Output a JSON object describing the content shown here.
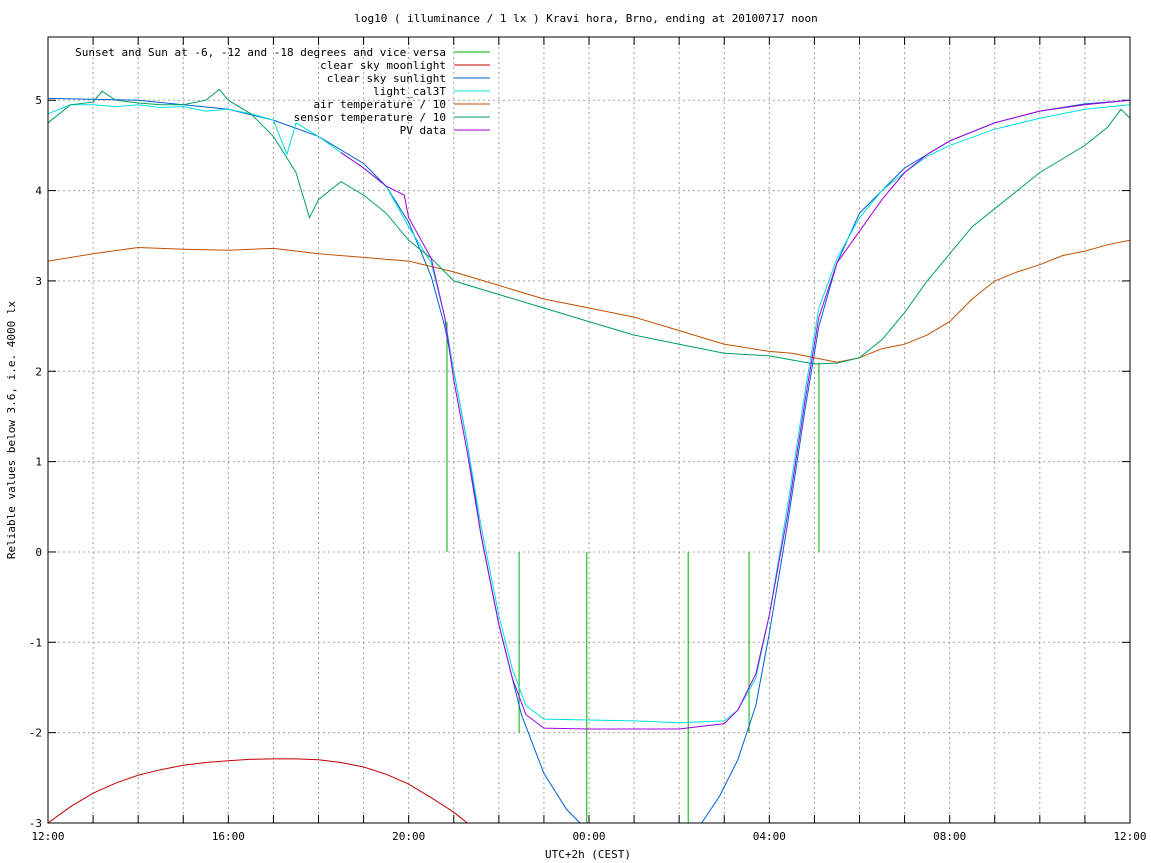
{
  "chart_data": {
    "type": "line",
    "title": "log10 ( illuminance / 1 lx ) Kravi hora, Brno, ending at 20100717 noon",
    "xlabel": "UTC+2h (CEST)",
    "ylabel": "Reliable values below 3.6, i.e. 4000 lx",
    "x_unit": "hours",
    "xlim": [
      12,
      36
    ],
    "ylim": [
      -3,
      5.7
    ],
    "x_tick_labels": [
      {
        "x": 12,
        "label": "12:00"
      },
      {
        "x": 16,
        "label": "16:00"
      },
      {
        "x": 20,
        "label": "20:00"
      },
      {
        "x": 24,
        "label": "00:00"
      },
      {
        "x": 28,
        "label": "04:00"
      },
      {
        "x": 32,
        "label": "08:00"
      },
      {
        "x": 36,
        "label": "12:00"
      }
    ],
    "x_minor_ticks": [
      13,
      14,
      15,
      17,
      18,
      19,
      21,
      22,
      23,
      25,
      26,
      27,
      29,
      30,
      31,
      33,
      34,
      35
    ],
    "y_ticks": [
      -3,
      -2,
      -1,
      0,
      1,
      2,
      3,
      4,
      5
    ],
    "grid": true,
    "legend_position": "top-left",
    "series": [
      {
        "name": "Sunset and Sun at -6, -12 and -18 degrees and vice versa",
        "color": "#00b000",
        "style": "impulses",
        "points": [
          [
            20.85,
            2.55
          ],
          [
            21.55,
            0
          ],
          [
            22.45,
            -2.0
          ],
          [
            23.95,
            -3
          ],
          [
            26.2,
            -3
          ],
          [
            27.55,
            -2.0
          ],
          [
            28.45,
            0
          ],
          [
            29.1,
            2.1
          ]
        ]
      },
      {
        "name": "clear sky moonlight",
        "color": "#c00000",
        "points": [
          [
            12.0,
            -3.0
          ],
          [
            12.5,
            -2.82
          ],
          [
            13.0,
            -2.67
          ],
          [
            13.5,
            -2.56
          ],
          [
            14.0,
            -2.47
          ],
          [
            14.5,
            -2.41
          ],
          [
            15.0,
            -2.36
          ],
          [
            15.5,
            -2.33
          ],
          [
            16.0,
            -2.31
          ],
          [
            16.5,
            -2.295
          ],
          [
            17.0,
            -2.29
          ],
          [
            17.5,
            -2.29
          ],
          [
            18.0,
            -2.3
          ],
          [
            18.5,
            -2.33
          ],
          [
            19.0,
            -2.38
          ],
          [
            19.5,
            -2.46
          ],
          [
            20.0,
            -2.57
          ],
          [
            20.5,
            -2.72
          ],
          [
            21.0,
            -2.88
          ],
          [
            21.3,
            -3.0
          ]
        ]
      },
      {
        "name": "clear sky sunlight",
        "color": "#0060d0",
        "points": [
          [
            12.0,
            5.02
          ],
          [
            14.0,
            5.0
          ],
          [
            16.0,
            4.9
          ],
          [
            17.0,
            4.78
          ],
          [
            18.0,
            4.6
          ],
          [
            19.0,
            4.3
          ],
          [
            19.5,
            4.05
          ],
          [
            20.0,
            3.65
          ],
          [
            20.5,
            3.05
          ],
          [
            20.8,
            2.5
          ],
          [
            21.0,
            2.0
          ],
          [
            21.3,
            1.2
          ],
          [
            21.6,
            0.2
          ],
          [
            22.0,
            -0.8
          ],
          [
            22.5,
            -1.8
          ],
          [
            23.0,
            -2.45
          ],
          [
            23.5,
            -2.85
          ],
          [
            23.8,
            -3.0
          ],
          [
            26.5,
            -3.0
          ],
          [
            26.9,
            -2.7
          ],
          [
            27.3,
            -2.3
          ],
          [
            27.7,
            -1.7
          ],
          [
            28.0,
            -0.9
          ],
          [
            28.4,
            0.3
          ],
          [
            28.8,
            1.6
          ],
          [
            29.1,
            2.5
          ],
          [
            29.5,
            3.2
          ],
          [
            30.0,
            3.75
          ],
          [
            31.0,
            4.25
          ],
          [
            32.0,
            4.55
          ],
          [
            33.0,
            4.75
          ],
          [
            34.0,
            4.88
          ],
          [
            35.0,
            4.96
          ],
          [
            36.0,
            5.0
          ]
        ]
      },
      {
        "name": "light_cal3T",
        "color": "#00e0e0",
        "points": [
          [
            12.0,
            4.85
          ],
          [
            12.5,
            4.95
          ],
          [
            13.0,
            4.95
          ],
          [
            13.5,
            4.93
          ],
          [
            14.0,
            4.95
          ],
          [
            14.5,
            4.92
          ],
          [
            15.0,
            4.93
          ],
          [
            15.5,
            4.88
          ],
          [
            16.0,
            4.9
          ],
          [
            16.5,
            4.85
          ],
          [
            17.0,
            4.78
          ],
          [
            17.3,
            4.4
          ],
          [
            17.5,
            4.75
          ],
          [
            18.0,
            4.6
          ],
          [
            18.5,
            4.42
          ],
          [
            19.0,
            4.25
          ],
          [
            19.5,
            4.05
          ],
          [
            20.0,
            3.6
          ],
          [
            20.5,
            3.2
          ],
          [
            20.8,
            2.6
          ],
          [
            21.0,
            2.0
          ],
          [
            21.3,
            1.2
          ],
          [
            21.6,
            0.3
          ],
          [
            22.0,
            -0.7
          ],
          [
            22.3,
            -1.3
          ],
          [
            22.6,
            -1.7
          ],
          [
            23.0,
            -1.85
          ],
          [
            24.0,
            -1.86
          ],
          [
            25.0,
            -1.87
          ],
          [
            26.0,
            -1.89
          ],
          [
            27.0,
            -1.87
          ],
          [
            27.3,
            -1.75
          ],
          [
            27.7,
            -1.4
          ],
          [
            28.0,
            -0.7
          ],
          [
            28.4,
            0.5
          ],
          [
            28.8,
            1.8
          ],
          [
            29.1,
            2.7
          ],
          [
            29.5,
            3.25
          ],
          [
            30.0,
            3.7
          ],
          [
            30.5,
            4.0
          ],
          [
            31.0,
            4.2
          ],
          [
            31.5,
            4.38
          ],
          [
            32.0,
            4.5
          ],
          [
            33.0,
            4.68
          ],
          [
            34.0,
            4.8
          ],
          [
            35.0,
            4.9
          ],
          [
            36.0,
            4.95
          ]
        ]
      },
      {
        "name": "air temperature / 10",
        "color": "#c05000",
        "points": [
          [
            12.0,
            3.22
          ],
          [
            13.0,
            3.3
          ],
          [
            14.0,
            3.37
          ],
          [
            15.0,
            3.35
          ],
          [
            16.0,
            3.34
          ],
          [
            17.0,
            3.36
          ],
          [
            18.0,
            3.3
          ],
          [
            19.0,
            3.26
          ],
          [
            20.0,
            3.22
          ],
          [
            21.0,
            3.1
          ],
          [
            22.0,
            2.95
          ],
          [
            23.0,
            2.8
          ],
          [
            24.0,
            2.7
          ],
          [
            25.0,
            2.6
          ],
          [
            26.0,
            2.45
          ],
          [
            27.0,
            2.3
          ],
          [
            28.0,
            2.22
          ],
          [
            28.5,
            2.2
          ],
          [
            29.0,
            2.15
          ],
          [
            29.5,
            2.1
          ],
          [
            30.0,
            2.15
          ],
          [
            30.5,
            2.25
          ],
          [
            31.0,
            2.3
          ],
          [
            31.5,
            2.4
          ],
          [
            32.0,
            2.55
          ],
          [
            32.5,
            2.8
          ],
          [
            33.0,
            3.0
          ],
          [
            33.5,
            3.1
          ],
          [
            34.0,
            3.18
          ],
          [
            34.5,
            3.28
          ],
          [
            35.0,
            3.33
          ],
          [
            35.5,
            3.4
          ],
          [
            36.0,
            3.45
          ]
        ]
      },
      {
        "name": "sensor temperature / 10",
        "color": "#00a060",
        "points": [
          [
            12.0,
            4.75
          ],
          [
            12.5,
            4.95
          ],
          [
            13.0,
            4.98
          ],
          [
            13.2,
            5.1
          ],
          [
            13.5,
            5.0
          ],
          [
            14.0,
            4.97
          ],
          [
            14.5,
            4.95
          ],
          [
            15.0,
            4.95
          ],
          [
            15.5,
            5.0
          ],
          [
            15.8,
            5.12
          ],
          [
            16.0,
            5.0
          ],
          [
            16.5,
            4.85
          ],
          [
            17.0,
            4.6
          ],
          [
            17.5,
            4.2
          ],
          [
            17.8,
            3.7
          ],
          [
            18.0,
            3.9
          ],
          [
            18.5,
            4.1
          ],
          [
            19.0,
            3.95
          ],
          [
            19.5,
            3.75
          ],
          [
            20.0,
            3.45
          ],
          [
            20.5,
            3.25
          ],
          [
            21.0,
            3.0
          ],
          [
            22.0,
            2.85
          ],
          [
            23.0,
            2.7
          ],
          [
            24.0,
            2.55
          ],
          [
            25.0,
            2.4
          ],
          [
            26.0,
            2.3
          ],
          [
            27.0,
            2.2
          ],
          [
            28.0,
            2.17
          ],
          [
            29.0,
            2.08
          ],
          [
            29.5,
            2.09
          ],
          [
            30.0,
            2.15
          ],
          [
            30.5,
            2.35
          ],
          [
            31.0,
            2.65
          ],
          [
            31.5,
            3.0
          ],
          [
            32.0,
            3.3
          ],
          [
            32.5,
            3.6
          ],
          [
            33.0,
            3.8
          ],
          [
            33.5,
            4.0
          ],
          [
            34.0,
            4.2
          ],
          [
            34.5,
            4.35
          ],
          [
            35.0,
            4.5
          ],
          [
            35.5,
            4.7
          ],
          [
            35.8,
            4.9
          ],
          [
            36.0,
            4.8
          ]
        ]
      },
      {
        "name": "PV data",
        "color": "#a000e0",
        "points": [
          [
            18.5,
            4.42
          ],
          [
            19.0,
            4.25
          ],
          [
            19.5,
            4.05
          ],
          [
            19.9,
            3.95
          ],
          [
            20.0,
            3.7
          ],
          [
            20.5,
            3.25
          ],
          [
            20.8,
            2.6
          ],
          [
            21.0,
            1.9
          ],
          [
            21.3,
            1.1
          ],
          [
            21.6,
            0.2
          ],
          [
            22.0,
            -0.8
          ],
          [
            22.3,
            -1.4
          ],
          [
            22.6,
            -1.8
          ],
          [
            23.0,
            -1.95
          ],
          [
            24.0,
            -1.96
          ],
          [
            25.0,
            -1.96
          ],
          [
            26.0,
            -1.96
          ],
          [
            27.0,
            -1.9
          ],
          [
            27.3,
            -1.75
          ],
          [
            27.7,
            -1.35
          ],
          [
            28.0,
            -0.7
          ],
          [
            28.4,
            0.4
          ],
          [
            28.8,
            1.7
          ],
          [
            29.1,
            2.6
          ],
          [
            29.5,
            3.2
          ],
          [
            30.0,
            3.55
          ],
          [
            30.5,
            3.9
          ],
          [
            31.0,
            4.2
          ],
          [
            31.5,
            4.4
          ],
          [
            32.0,
            4.55
          ],
          [
            33.0,
            4.75
          ],
          [
            34.0,
            4.88
          ],
          [
            35.0,
            4.95
          ],
          [
            36.0,
            5.0
          ]
        ]
      }
    ]
  }
}
